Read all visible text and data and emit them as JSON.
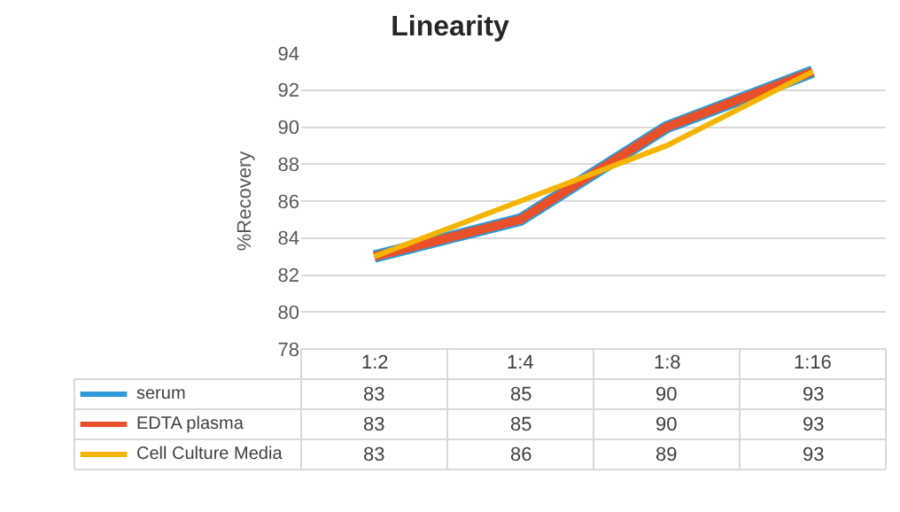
{
  "chart_data": {
    "type": "line",
    "title": "Linearity",
    "ylabel": "%Recovery",
    "categories": [
      "1:2",
      "1:4",
      "1:8",
      "1:16"
    ],
    "series": [
      {
        "name": "serum",
        "color": "#2e9bd6",
        "values": [
          83,
          85,
          90,
          93
        ]
      },
      {
        "name": "EDTA plasma",
        "color": "#e8502a",
        "values": [
          83,
          85,
          90,
          93
        ]
      },
      {
        "name": "Cell Culture Media",
        "color": "#f5b400",
        "values": [
          83,
          86,
          89,
          93
        ]
      }
    ],
    "ylim": [
      78,
      94
    ],
    "yticks": [
      78,
      80,
      82,
      84,
      86,
      88,
      90,
      92,
      94
    ],
    "grid": "y",
    "legend": "bottom",
    "data_labels": true,
    "marker": "none",
    "line_style": "solid"
  }
}
